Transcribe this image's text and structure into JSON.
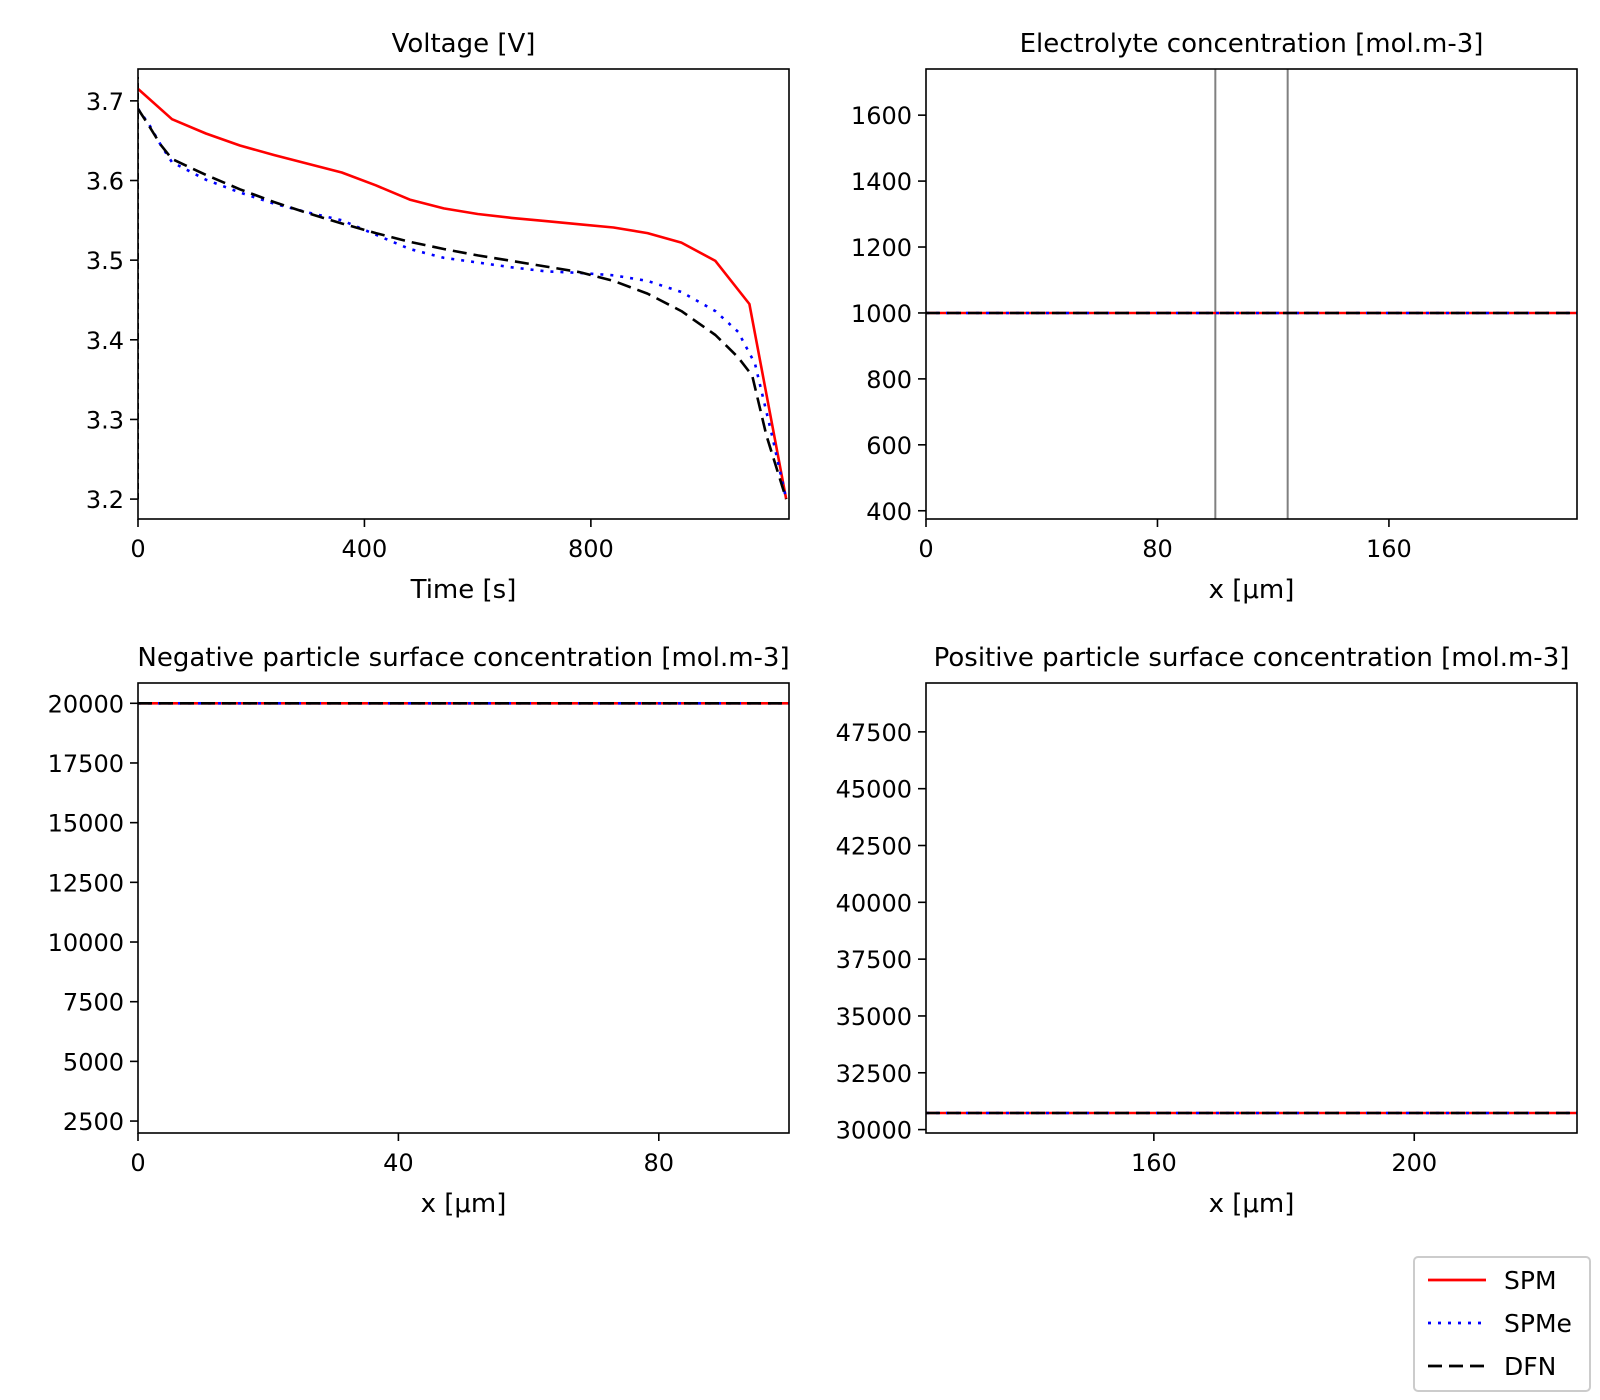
{
  "series_styles": [
    {
      "name": "SPM",
      "color": "#ff0000",
      "dash": ""
    },
    {
      "name": "SPMe",
      "color": "#0000ff",
      "dash": "3,7"
    },
    {
      "name": "DFN",
      "color": "#000000",
      "dash": "14,7"
    }
  ],
  "legend": {
    "items": [
      "SPM",
      "SPMe",
      "DFN"
    ],
    "placement": "bottom-right"
  },
  "chart_data": [
    {
      "type": "line",
      "title": "Voltage [V]",
      "xlabel": "Time [s]",
      "ylabel": "",
      "xlim": [
        0,
        1150
      ],
      "ylim": [
        3.175,
        3.74
      ],
      "xticks": [
        0,
        400,
        800
      ],
      "xtick_labels": [
        "0",
        "400",
        "800"
      ],
      "yticks": [
        3.2,
        3.3,
        3.4,
        3.5,
        3.6,
        3.7
      ],
      "ytick_labels": [
        "3.2",
        "3.3",
        "3.4",
        "3.5",
        "3.6",
        "3.7"
      ],
      "vlines": [
        {
          "x": 0,
          "y0": 3.2,
          "y1": 3.73,
          "color": "#000000",
          "dash": "6,4"
        }
      ],
      "series": [
        {
          "name": "SPM",
          "x": [
            0,
            60,
            120,
            180,
            240,
            300,
            360,
            420,
            480,
            540,
            600,
            660,
            720,
            780,
            840,
            900,
            960,
            1020,
            1080,
            1145
          ],
          "y": [
            3.715,
            3.677,
            3.659,
            3.644,
            3.632,
            3.621,
            3.61,
            3.594,
            3.576,
            3.565,
            3.558,
            3.553,
            3.549,
            3.545,
            3.541,
            3.534,
            3.522,
            3.499,
            3.445,
            3.2
          ]
        },
        {
          "name": "SPMe",
          "x": [
            0,
            20,
            40,
            60,
            120,
            180,
            240,
            300,
            360,
            420,
            480,
            540,
            600,
            660,
            720,
            780,
            840,
            900,
            960,
            1020,
            1060,
            1090,
            1120,
            1145
          ],
          "y": [
            3.69,
            3.67,
            3.645,
            3.623,
            3.601,
            3.585,
            3.571,
            3.56,
            3.55,
            3.532,
            3.514,
            3.503,
            3.497,
            3.491,
            3.486,
            3.484,
            3.481,
            3.474,
            3.46,
            3.436,
            3.41,
            3.37,
            3.28,
            3.2
          ]
        },
        {
          "name": "DFN",
          "x": [
            0,
            20,
            40,
            60,
            120,
            180,
            240,
            300,
            360,
            420,
            480,
            540,
            600,
            660,
            720,
            780,
            840,
            900,
            960,
            1020,
            1060,
            1085,
            1110,
            1145
          ],
          "y": [
            3.69,
            3.668,
            3.645,
            3.627,
            3.607,
            3.589,
            3.573,
            3.559,
            3.546,
            3.534,
            3.523,
            3.514,
            3.506,
            3.499,
            3.492,
            3.485,
            3.474,
            3.458,
            3.436,
            3.406,
            3.378,
            3.355,
            3.28,
            3.2
          ]
        }
      ]
    },
    {
      "type": "line",
      "title": "Electrolyte concentration [mol.m-3]",
      "xlabel": "x [μm]",
      "ylabel": "",
      "xlim": [
        0,
        225
      ],
      "ylim": [
        375,
        1740
      ],
      "xticks": [
        0,
        80,
        160
      ],
      "xtick_labels": [
        "0",
        "80",
        "160"
      ],
      "yticks": [
        400,
        600,
        800,
        1000,
        1200,
        1400,
        1600
      ],
      "ytick_labels": [
        "400",
        "600",
        "800",
        "1000",
        "1200",
        "1400",
        "1600"
      ],
      "vlines": [
        {
          "x": 100,
          "color": "#808080"
        },
        {
          "x": 125,
          "color": "#808080"
        }
      ],
      "series": [
        {
          "name": "SPM",
          "x": [
            0,
            225
          ],
          "y": [
            1000,
            1000
          ]
        },
        {
          "name": "SPMe",
          "x": [
            0,
            225
          ],
          "y": [
            1000,
            1000
          ]
        },
        {
          "name": "DFN",
          "x": [
            0,
            225
          ],
          "y": [
            1000,
            1000
          ]
        }
      ]
    },
    {
      "type": "line",
      "title": "Negative particle surface concentration [mol.m-3]",
      "xlabel": "x [μm]",
      "ylabel": "",
      "xlim": [
        0,
        100
      ],
      "ylim": [
        2000,
        20850
      ],
      "xticks": [
        0,
        40,
        80
      ],
      "xtick_labels": [
        "0",
        "40",
        "80"
      ],
      "yticks": [
        2500,
        5000,
        7500,
        10000,
        12500,
        15000,
        17500,
        20000
      ],
      "ytick_labels": [
        "2500",
        "5000",
        "7500",
        "10000",
        "12500",
        "15000",
        "17500",
        "20000"
      ],
      "vlines": [],
      "series": [
        {
          "name": "SPM",
          "x": [
            0,
            100
          ],
          "y": [
            20000,
            20000
          ]
        },
        {
          "name": "SPMe",
          "x": [
            0,
            100
          ],
          "y": [
            20000,
            20000
          ]
        },
        {
          "name": "DFN",
          "x": [
            0,
            100
          ],
          "y": [
            20000,
            20000
          ]
        }
      ]
    },
    {
      "type": "line",
      "title": "Positive particle surface concentration [mol.m-3]",
      "xlabel": "x [μm]",
      "ylabel": "",
      "xlim": [
        125,
        225
      ],
      "ylim": [
        29850,
        49650
      ],
      "xticks": [
        160,
        200
      ],
      "xtick_labels": [
        "160",
        "200"
      ],
      "yticks": [
        30000,
        32500,
        35000,
        37500,
        40000,
        42500,
        45000,
        47500
      ],
      "ytick_labels": [
        "30000",
        "32500",
        "35000",
        "37500",
        "40000",
        "42500",
        "45000",
        "47500"
      ],
      "vlines": [],
      "series": [
        {
          "name": "SPM",
          "x": [
            125,
            225
          ],
          "y": [
            30730,
            30730
          ]
        },
        {
          "name": "SPMe",
          "x": [
            125,
            225
          ],
          "y": [
            30730,
            30730
          ]
        },
        {
          "name": "DFN",
          "x": [
            125,
            225
          ],
          "y": [
            30730,
            30730
          ]
        }
      ]
    }
  ]
}
